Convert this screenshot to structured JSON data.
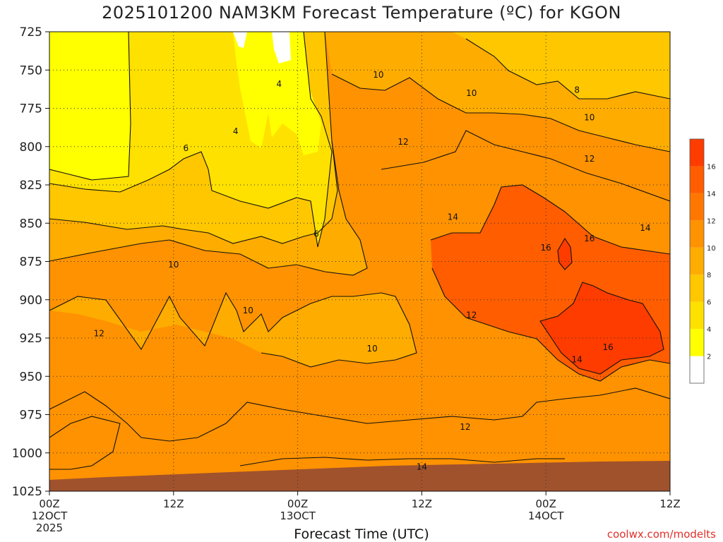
{
  "chart_data": {
    "type": "heatmap",
    "title": "2025101200 NAM3KM Forecast Temperature (ºC) for KGON",
    "xlabel": "Forecast Time (UTC)",
    "y_ticks": [
      "725",
      "750",
      "775",
      "800",
      "825",
      "850",
      "875",
      "900",
      "925",
      "950",
      "975",
      "1000",
      "1025"
    ],
    "x_ticks": [
      {
        "line1": "00Z",
        "line2": "12OCT",
        "line3": "2025"
      },
      {
        "line1": "12Z",
        "line2": "",
        "line3": ""
      },
      {
        "line1": "00Z",
        "line2": "13OCT",
        "line3": ""
      },
      {
        "line1": "12Z",
        "line2": "",
        "line3": ""
      },
      {
        "line1": "00Z",
        "line2": "14OCT",
        "line3": ""
      },
      {
        "line1": "12Z",
        "line2": "",
        "line3": ""
      }
    ],
    "ylim": [
      725,
      1025
    ],
    "colorbar": {
      "levels": [
        2,
        4,
        6,
        8,
        10,
        12,
        14,
        16
      ],
      "colors": [
        "#ffffff",
        "#ffff00",
        "#ffe100",
        "#ffc700",
        "#ffac00",
        "#ff9200",
        "#ff7700",
        "#ff5d00",
        "#ff3c00"
      ]
    },
    "contour_labels": [
      {
        "text": "4",
        "t": 0.37,
        "p": 759
      },
      {
        "text": "4",
        "t": 0.3,
        "p": 790
      },
      {
        "text": "6",
        "t": 0.22,
        "p": 801
      },
      {
        "text": "6",
        "t": 0.43,
        "p": 857
      },
      {
        "text": "10",
        "t": 0.53,
        "p": 753
      },
      {
        "text": "10",
        "t": 0.68,
        "p": 765
      },
      {
        "text": "8",
        "t": 0.85,
        "p": 763
      },
      {
        "text": "10",
        "t": 0.87,
        "p": 781
      },
      {
        "text": "12",
        "t": 0.57,
        "p": 797
      },
      {
        "text": "12",
        "t": 0.87,
        "p": 808
      },
      {
        "text": "14",
        "t": 0.65,
        "p": 846
      },
      {
        "text": "14",
        "t": 0.96,
        "p": 853
      },
      {
        "text": "16",
        "t": 0.8,
        "p": 866
      },
      {
        "text": "16",
        "t": 0.87,
        "p": 860
      },
      {
        "text": "10",
        "t": 0.2,
        "p": 877
      },
      {
        "text": "10",
        "t": 0.32,
        "p": 907
      },
      {
        "text": "12",
        "t": 0.08,
        "p": 922
      },
      {
        "text": "12",
        "t": 0.68,
        "p": 910
      },
      {
        "text": "10",
        "t": 0.52,
        "p": 932
      },
      {
        "text": "14",
        "t": 0.85,
        "p": 939
      },
      {
        "text": "16",
        "t": 0.9,
        "p": 931
      },
      {
        "text": "12",
        "t": 0.67,
        "p": 983
      },
      {
        "text": "14",
        "t": 0.6,
        "p": 1009
      }
    ],
    "credit": "coolwx.com/modelts"
  }
}
